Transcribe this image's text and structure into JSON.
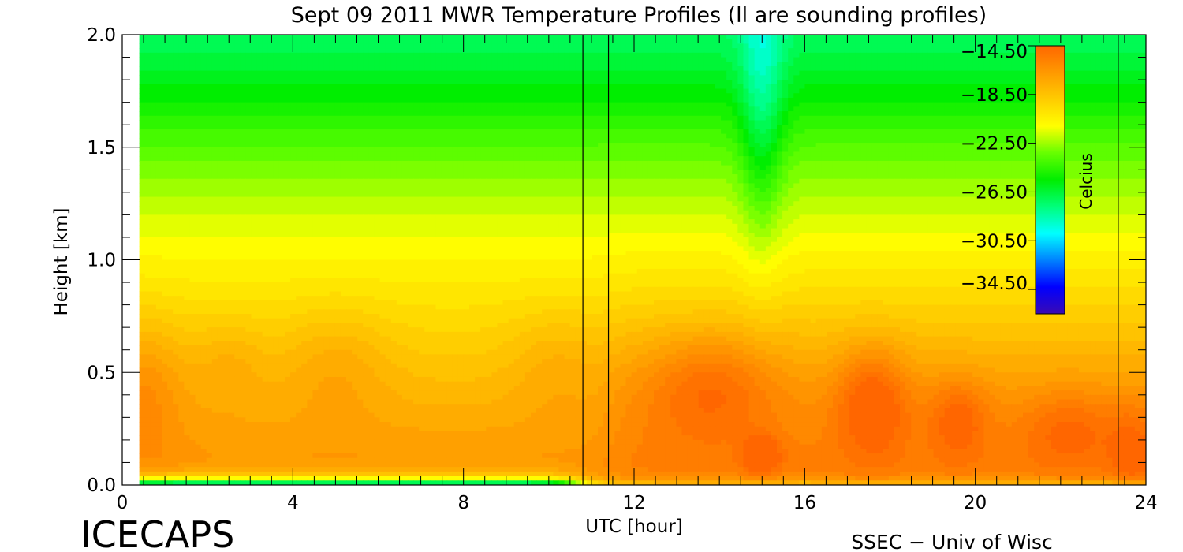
{
  "chart_data": {
    "type": "heatmap",
    "title": "Sept 09 2011 MWR Temperature Profiles (ll are sounding profiles)",
    "xlabel": "UTC [hour]",
    "ylabel": "Height [km]",
    "xlim": [
      0,
      24
    ],
    "ylim": [
      0,
      2.0
    ],
    "x_ticks": [
      0,
      4,
      8,
      12,
      16,
      20,
      24
    ],
    "y_ticks": [
      0.0,
      0.5,
      1.0,
      1.5,
      2.0
    ],
    "x_tick_labels": [
      "0",
      "4",
      "8",
      "12",
      "16",
      "20",
      "24"
    ],
    "y_tick_labels": [
      "0.0",
      "0.5",
      "1.0",
      "1.5",
      "2.0"
    ],
    "data_start_hour": 0.4,
    "sounding_lines_hours": [
      10.8,
      11.4,
      23.35
    ],
    "colorbar": {
      "label": "Celcius",
      "min": -36.5,
      "max": -14.5,
      "tick_values": [
        -14.5,
        -18.5,
        -22.5,
        -26.5,
        -30.5,
        -34.5
      ],
      "tick_labels": [
        "−14.50",
        "−18.50",
        "−22.50",
        "−26.50",
        "−30.50",
        "−34.50"
      ],
      "colors": [
        "#3a0ab4",
        "#0000ff",
        "#0082ff",
        "#00ffff",
        "#00ff7a",
        "#00ee00",
        "#66ff00",
        "#ffff00",
        "#ffcc00",
        "#ff9900",
        "#ff6600"
      ]
    },
    "grid": false,
    "notes_left": "ICECAPS",
    "notes_right": "SSEC − Univ of Wisc"
  }
}
